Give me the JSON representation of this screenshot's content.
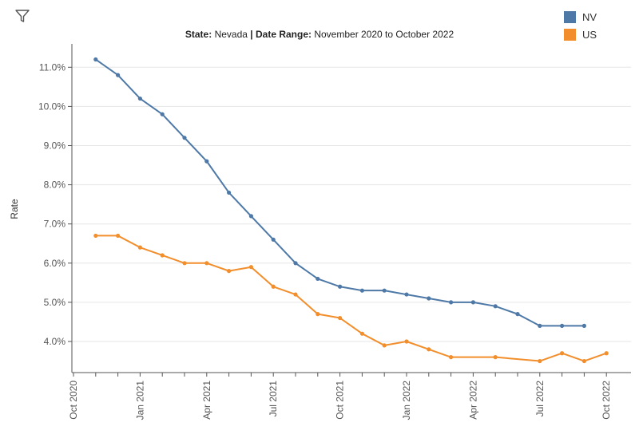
{
  "toolbar": {
    "filter_icon": "filter-icon"
  },
  "title": {
    "state_label": "State:",
    "state_value": "Nevada",
    "separator": "|",
    "range_label": "Date Range:",
    "range_value": "November 2020 to October 2022"
  },
  "legend": [
    {
      "name": "NV",
      "color": "#4e79a7"
    },
    {
      "name": "US",
      "color": "#f28e2b"
    }
  ],
  "chart_data": {
    "type": "line",
    "ylabel": "Rate",
    "xlabel": "",
    "ylim": [
      3.0,
      11.5
    ],
    "y_ticks": [
      "4.0%",
      "5.0%",
      "6.0%",
      "7.0%",
      "8.0%",
      "9.0%",
      "10.0%",
      "11.0%"
    ],
    "y_tick_values": [
      4,
      5,
      6,
      7,
      8,
      9,
      10,
      11
    ],
    "x_ticks": [
      "Oct 2020",
      "Jan 2021",
      "Apr 2021",
      "Jul 2021",
      "Oct 2021",
      "Jan 2022",
      "Apr 2022",
      "Jul 2022",
      "Oct 2022"
    ],
    "x_tick_months": [
      0,
      3,
      6,
      9,
      12,
      15,
      18,
      21,
      24
    ],
    "grid": true,
    "legend_position": "top-right",
    "series": [
      {
        "name": "NV",
        "color": "#4e79a7",
        "x": [
          1,
          2,
          3,
          4,
          5,
          6,
          7,
          8,
          9,
          10,
          11,
          12,
          13,
          14,
          15,
          16,
          17,
          18,
          19,
          20,
          21,
          22,
          23
        ],
        "values": [
          11.2,
          10.8,
          10.2,
          9.8,
          9.2,
          8.6,
          7.8,
          7.2,
          6.6,
          6.0,
          5.6,
          5.4,
          5.3,
          5.3,
          5.2,
          5.1,
          5.0,
          5.0,
          4.9,
          4.7,
          4.4,
          4.4,
          4.4
        ]
      },
      {
        "name": "US",
        "color": "#f28e2b",
        "x": [
          1,
          2,
          3,
          4,
          5,
          6,
          7,
          8,
          9,
          10,
          11,
          12,
          13,
          14,
          15,
          16,
          17,
          19,
          21,
          22,
          23,
          24
        ],
        "values": [
          6.7,
          6.7,
          6.4,
          6.2,
          6.0,
          6.0,
          5.8,
          5.9,
          5.4,
          5.2,
          4.7,
          4.6,
          4.2,
          3.9,
          4.0,
          3.8,
          3.6,
          3.6,
          3.5,
          3.7,
          3.5,
          3.7
        ]
      }
    ]
  }
}
